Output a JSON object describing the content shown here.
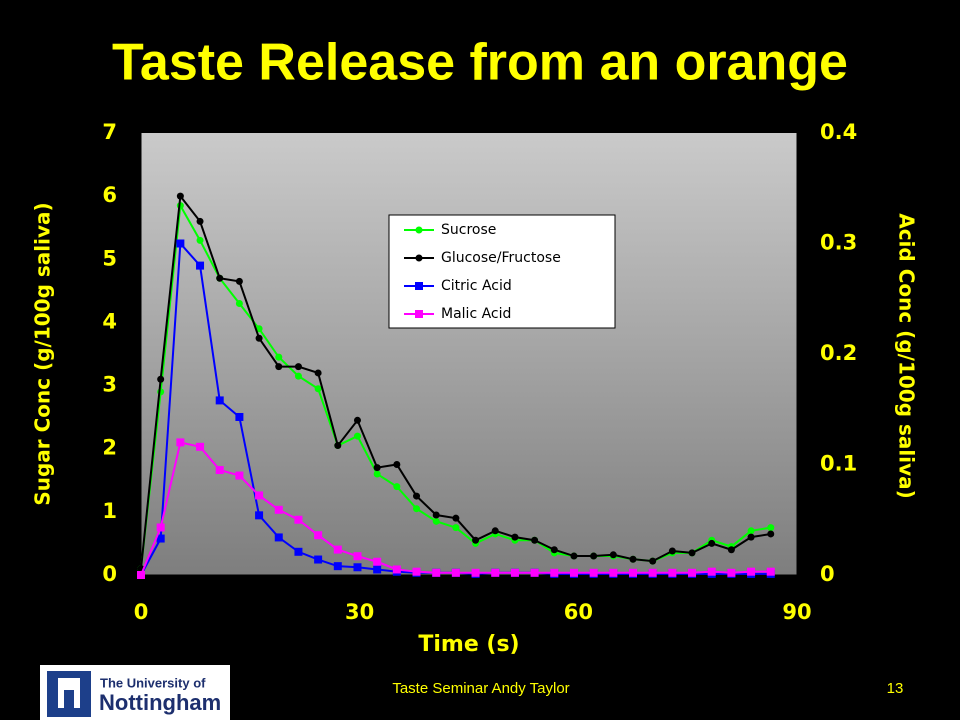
{
  "chart_data": {
    "type": "line",
    "title": "Taste Release from an orange",
    "xlabel": "Time (s)",
    "ylabel": "Sugar Conc (g/100g saliva)",
    "y2label": "Acid Conc (g/100g saliva)",
    "x": [
      0,
      2.7,
      5.4,
      8.1,
      10.8,
      13.5,
      16.2,
      18.9,
      21.6,
      24.3,
      27,
      29.7,
      32.4,
      35.1,
      37.8,
      40.5,
      43.2,
      45.9,
      48.6,
      51.3,
      54,
      56.7,
      59.4,
      62.1,
      64.8,
      67.5,
      70.2,
      72.9,
      75.6,
      78.3,
      81,
      83.7,
      86.4
    ],
    "series": [
      {
        "name": "Sucrose",
        "color": "#00ff00",
        "marker": "circle",
        "values": [
          0.1,
          2.9,
          5.85,
          5.3,
          4.7,
          4.3,
          3.9,
          3.45,
          3.15,
          2.95,
          2.05,
          2.2,
          1.6,
          1.4,
          1.05,
          0.85,
          0.75,
          0.5,
          0.65,
          0.55,
          0.55,
          0.35,
          0.3,
          0.3,
          0.3,
          0.25,
          0.22,
          0.35,
          0.35,
          0.55,
          0.45,
          0.7,
          0.75
        ]
      },
      {
        "name": "Glucose/Fructose",
        "color": "#000000",
        "marker": "circle",
        "values": [
          0.1,
          3.1,
          6.0,
          5.6,
          4.7,
          4.65,
          3.75,
          3.3,
          3.3,
          3.2,
          2.05,
          2.45,
          1.7,
          1.75,
          1.25,
          0.95,
          0.9,
          0.55,
          0.7,
          0.6,
          0.55,
          0.4,
          0.3,
          0.3,
          0.32,
          0.25,
          0.22,
          0.38,
          0.35,
          0.5,
          0.4,
          0.6,
          0.65
        ]
      },
      {
        "name": "Citric Acid",
        "color": "#0000ff",
        "marker": "square",
        "axis": "y2",
        "values": [
          0,
          0.033,
          0.3,
          0.28,
          0.158,
          0.143,
          0.054,
          0.034,
          0.021,
          0.014,
          0.008,
          0.007,
          0.005,
          0.003,
          0.002,
          0.002,
          0.002,
          0.001,
          0.002,
          0.002,
          0.002,
          0.001,
          0.001,
          0.001,
          0.001,
          0.001,
          0.001,
          0.001,
          0.001,
          0.001,
          0.001,
          0.001,
          0.001
        ]
      },
      {
        "name": "Malic Acid",
        "color": "#ff00ff",
        "marker": "square",
        "axis": "y2",
        "values": [
          0,
          0.043,
          0.12,
          0.116,
          0.095,
          0.09,
          0.072,
          0.059,
          0.05,
          0.036,
          0.023,
          0.017,
          0.012,
          0.005,
          0.003,
          0.002,
          0.002,
          0.002,
          0.002,
          0.002,
          0.002,
          0.002,
          0.002,
          0.002,
          0.002,
          0.002,
          0.002,
          0.002,
          0.002,
          0.003,
          0.002,
          0.003,
          0.003
        ]
      }
    ],
    "xlim": [
      0,
      90
    ],
    "xticks": [
      0,
      30,
      60,
      90
    ],
    "ylim": [
      0,
      7
    ],
    "yticks": [
      0,
      1,
      2,
      3,
      4,
      5,
      6,
      7
    ],
    "y2lim": [
      0,
      0.4
    ],
    "y2ticks": [
      0,
      0.1,
      0.2,
      0.3,
      0.4
    ]
  },
  "footer": {
    "text": "Taste Seminar Andy Taylor",
    "page": "13",
    "logo_line1": "The University of",
    "logo_line2": "Nottingham"
  }
}
